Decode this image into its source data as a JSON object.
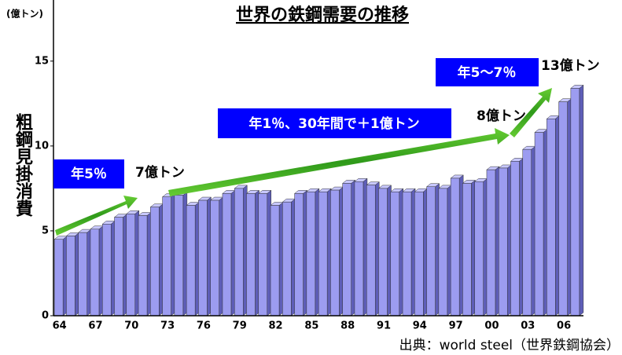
{
  "chart_data": {
    "type": "bar",
    "title": "世界の鉄鋼需要の推移",
    "unit_label": "(億トン)",
    "y_axis_label": "粗鋼見掛消費",
    "source": "出典：world steel（世界鉄鋼協会）",
    "annotations": [
      "年5％",
      "7億トン",
      "年1％、30年間で＋1億トン",
      "8億トン",
      "年5～7％",
      "13億トン"
    ],
    "categories": [
      "64",
      null,
      null,
      "67",
      null,
      null,
      "70",
      null,
      null,
      "73",
      null,
      null,
      "76",
      null,
      null,
      "79",
      null,
      null,
      "82",
      null,
      null,
      "85",
      null,
      null,
      "88",
      null,
      null,
      "91",
      null,
      null,
      "94",
      null,
      null,
      "97",
      null,
      null,
      "00",
      null,
      null,
      "03",
      null,
      null,
      "06",
      null
    ],
    "values": [
      4.5,
      4.7,
      4.9,
      5.1,
      5.4,
      5.8,
      6.0,
      5.9,
      6.4,
      7.0,
      7.1,
      6.5,
      6.8,
      6.8,
      7.2,
      7.5,
      7.2,
      7.2,
      6.5,
      6.7,
      7.2,
      7.3,
      7.3,
      7.4,
      7.8,
      7.9,
      7.7,
      7.5,
      7.3,
      7.3,
      7.3,
      7.6,
      7.5,
      8.1,
      7.8,
      7.9,
      8.6,
      8.7,
      9.1,
      9.8,
      10.8,
      11.6,
      12.6,
      13.4
    ],
    "color": "#9c9cf0",
    "ylim": [
      0,
      18.6
    ],
    "yticks": [
      0,
      5,
      10,
      15
    ],
    "grid": false
  }
}
